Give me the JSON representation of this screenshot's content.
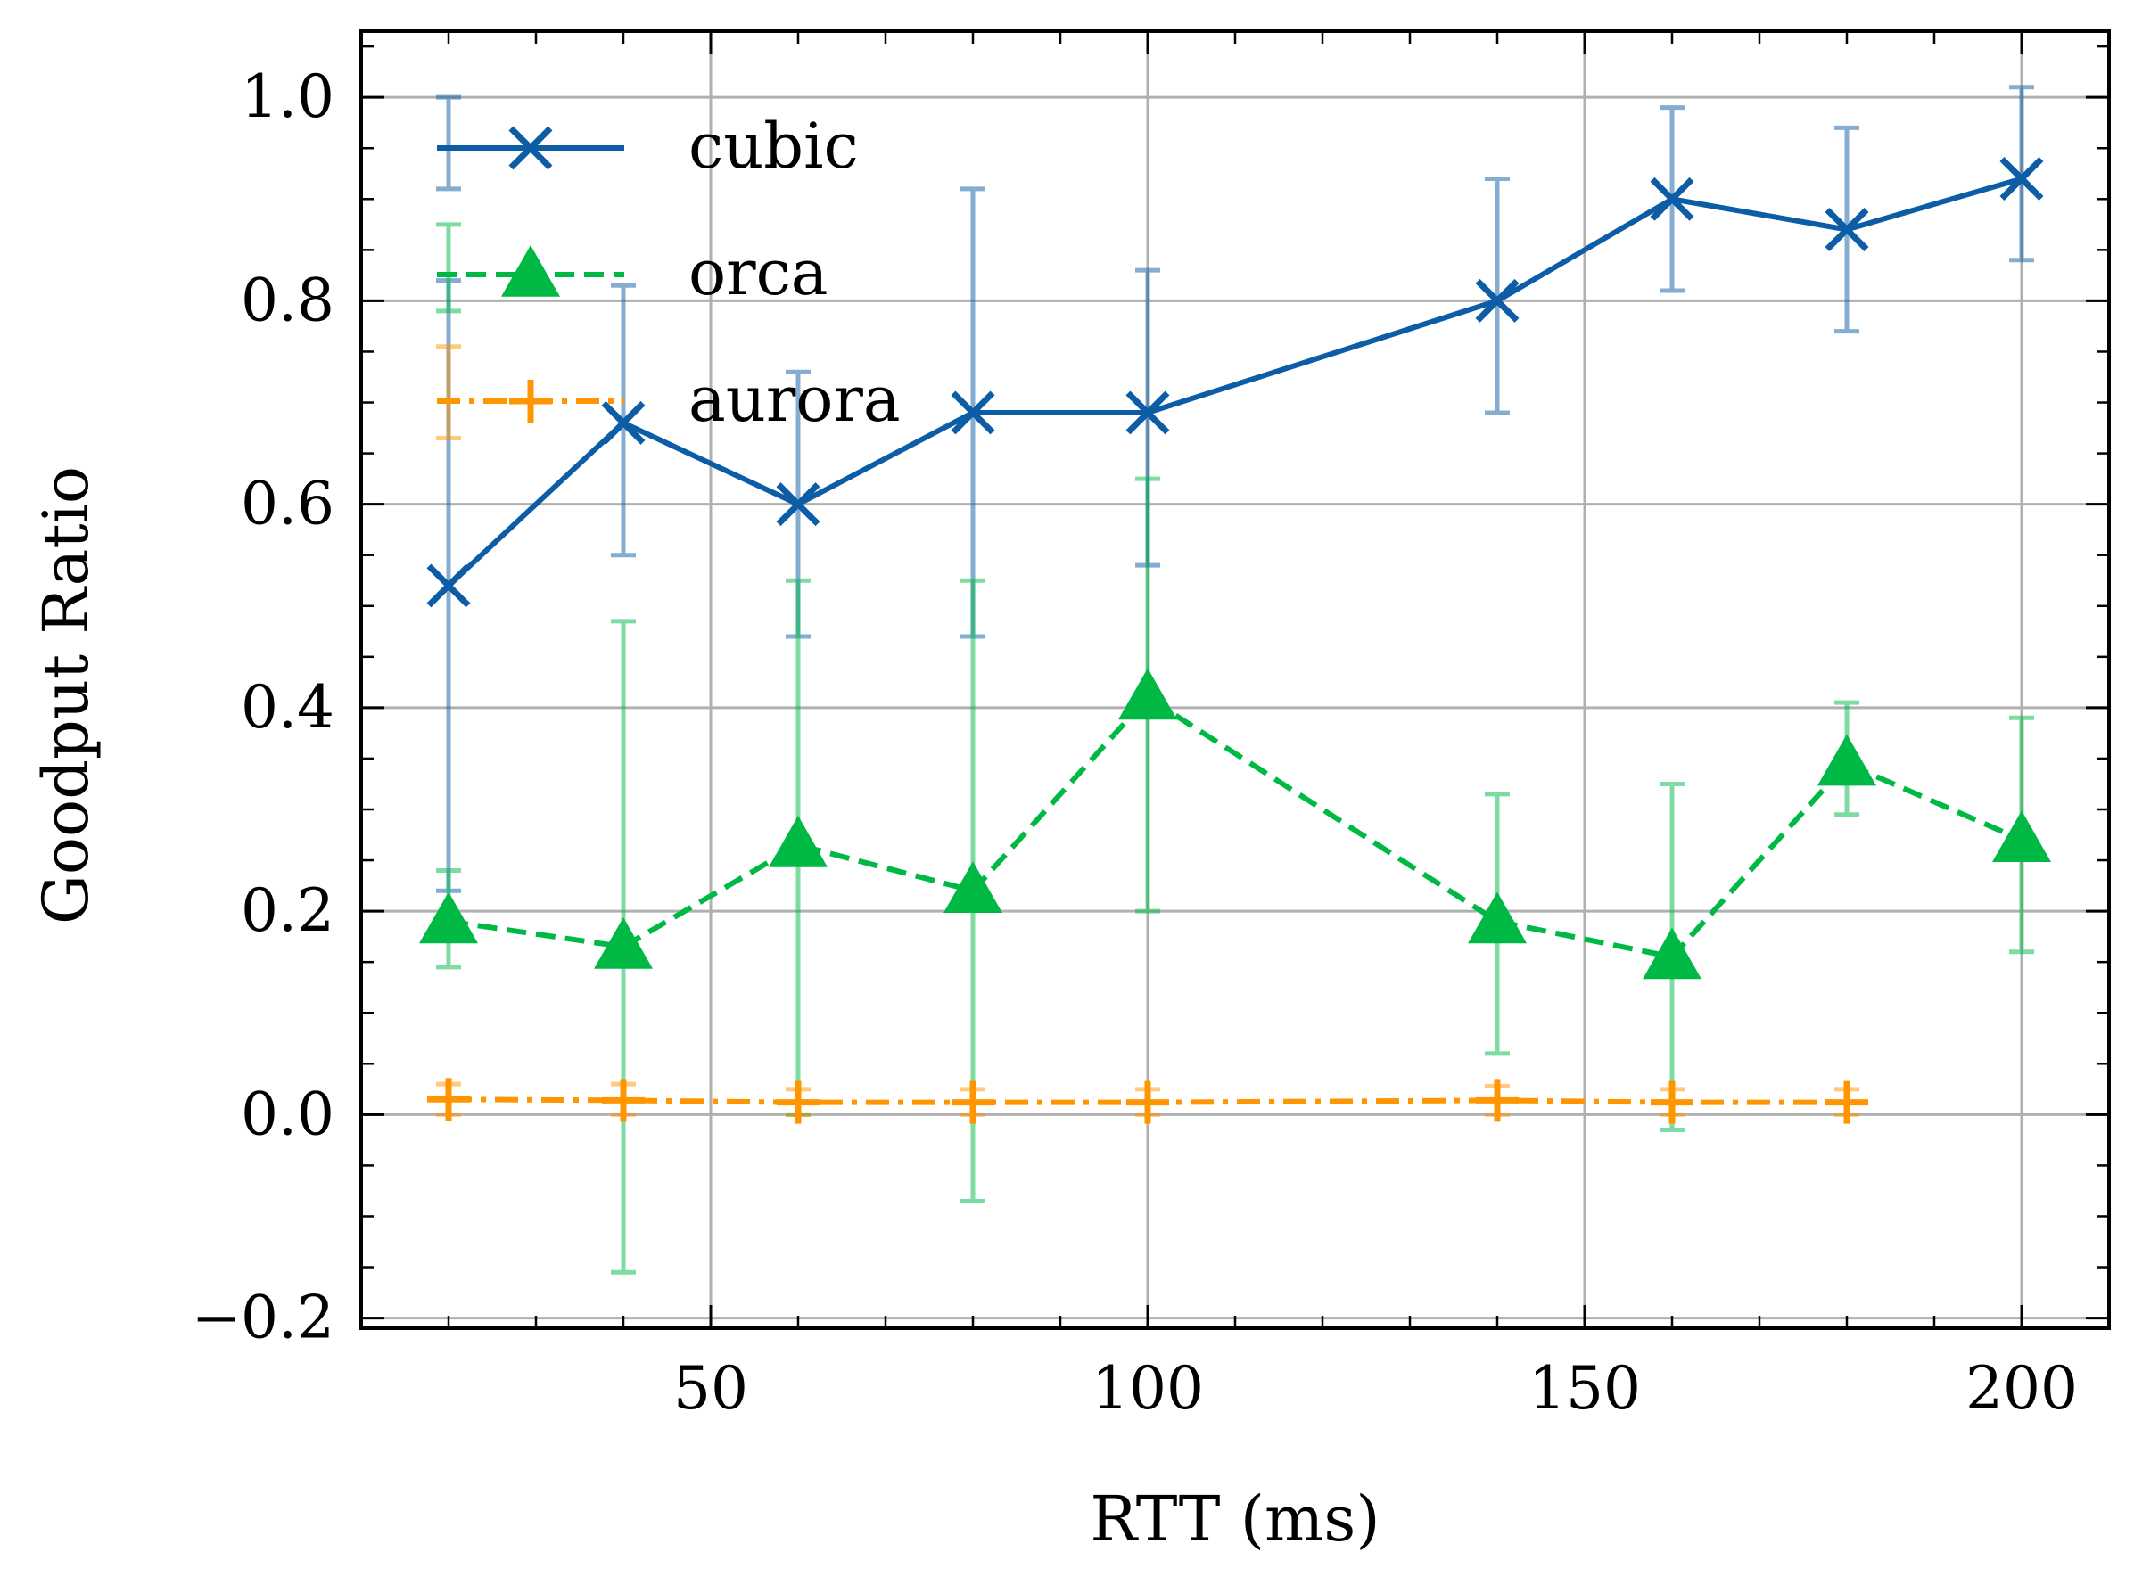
{
  "chart_data": {
    "type": "line",
    "title": "",
    "xlabel": "RTT (ms)",
    "ylabel": "Goodput Ratio",
    "xlim": [
      10,
      210
    ],
    "ylim": [
      -0.21,
      1.065
    ],
    "xticks": [
      50,
      100,
      150,
      200
    ],
    "xtick_labels": [
      "50",
      "100",
      "150",
      "200"
    ],
    "yticks": [
      -0.2,
      0.0,
      0.2,
      0.4,
      0.6,
      0.8,
      1.0
    ],
    "ytick_labels": [
      "−0.2",
      "0.0",
      "0.2",
      "0.4",
      "0.6",
      "0.8",
      "1.0"
    ],
    "grid": true,
    "legend_position": "top-left",
    "series": [
      {
        "name": "cubic",
        "color": "#0C5DA5",
        "marker": "x",
        "linestyle": "solid",
        "x": [
          20,
          40,
          60,
          80,
          100,
          140,
          160,
          180,
          200
        ],
        "y": [
          0.52,
          0.68,
          0.6,
          0.69,
          0.69,
          0.8,
          0.9,
          0.87,
          0.92
        ],
        "err_low": [
          0.22,
          0.55,
          0.47,
          0.47,
          0.54,
          0.69,
          0.81,
          0.77,
          0.84
        ],
        "err_high": [
          0.82,
          0.815,
          0.73,
          0.91,
          0.83,
          0.92,
          0.99,
          0.97,
          1.01
        ]
      },
      {
        "name": "orca",
        "color": "#00B945",
        "marker": "triangle-up",
        "linestyle": "dashed",
        "x": [
          20,
          40,
          60,
          80,
          100,
          140,
          160,
          180,
          200
        ],
        "y": [
          0.19,
          0.165,
          0.265,
          0.22,
          0.41,
          0.19,
          0.155,
          0.345,
          0.27
        ],
        "err_low": [
          0.145,
          -0.155,
          0.0,
          -0.085,
          0.2,
          0.06,
          -0.015,
          0.295,
          0.16
        ],
        "err_high": [
          0.24,
          0.485,
          0.525,
          0.525,
          0.625,
          0.315,
          0.325,
          0.405,
          0.39
        ]
      },
      {
        "name": "aurora",
        "color": "#FF9500",
        "marker": "plus",
        "linestyle": "dashdot",
        "x": [
          20,
          40,
          60,
          80,
          100,
          140,
          160,
          180
        ],
        "y": [
          0.015,
          0.014,
          0.012,
          0.012,
          0.012,
          0.014,
          0.012,
          0.012
        ],
        "err_low": [
          0.0,
          0.0,
          0.0,
          0.0,
          0.0,
          0.0,
          0.0,
          0.0
        ],
        "err_high": [
          0.03,
          0.03,
          0.025,
          0.025,
          0.025,
          0.028,
          0.025,
          0.025
        ]
      }
    ],
    "legend_extra_errorbar": {
      "series": "aurora",
      "x": 20,
      "y": 0.71,
      "err_low": 0.665,
      "err_high": 0.755,
      "cubic_top": {
        "x": 20,
        "y": 0.96,
        "err_low": 0.91,
        "err_high": 1.0
      },
      "orca_top": {
        "x": 20,
        "y": 0.83,
        "err_low": 0.79,
        "err_high": 0.875
      }
    }
  }
}
